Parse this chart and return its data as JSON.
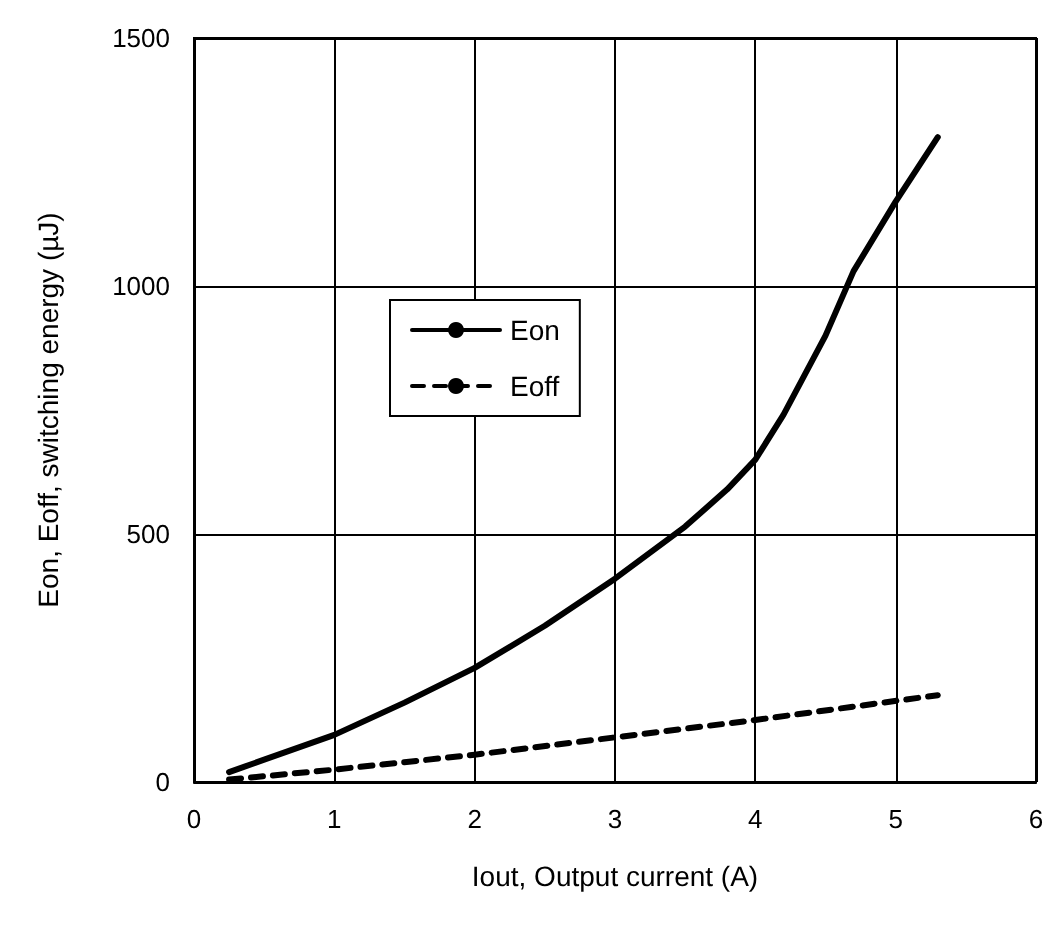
{
  "chart_data": {
    "type": "line",
    "xlabel": "Iout, Output current (A)",
    "ylabel": "Eon, Eoff, switching energy (µJ)",
    "xlim": [
      0,
      6
    ],
    "xticks": [
      0,
      1,
      2,
      3,
      4,
      5,
      6
    ],
    "ylim": [
      0,
      1500
    ],
    "yticks": [
      0,
      500,
      1000,
      1500
    ],
    "grid": true,
    "legend": "center",
    "marker": "none",
    "series": [
      {
        "name": "Eon",
        "color": "#000000",
        "line_style": "solid",
        "x": [
          0.25,
          0.5,
          1,
          1.5,
          2,
          2.5,
          3,
          3.5,
          3.8,
          4,
          4.2,
          4.5,
          4.7,
          5,
          5.3
        ],
        "values": [
          20,
          45,
          95,
          160,
          230,
          315,
          410,
          515,
          590,
          650,
          740,
          900,
          1030,
          1170,
          1300
        ]
      },
      {
        "name": "Eoff",
        "color": "#000000",
        "line_style": "dashed",
        "x": [
          0.25,
          1,
          2,
          3,
          4,
          5.3
        ],
        "values": [
          5,
          25,
          55,
          90,
          125,
          175
        ]
      }
    ]
  }
}
